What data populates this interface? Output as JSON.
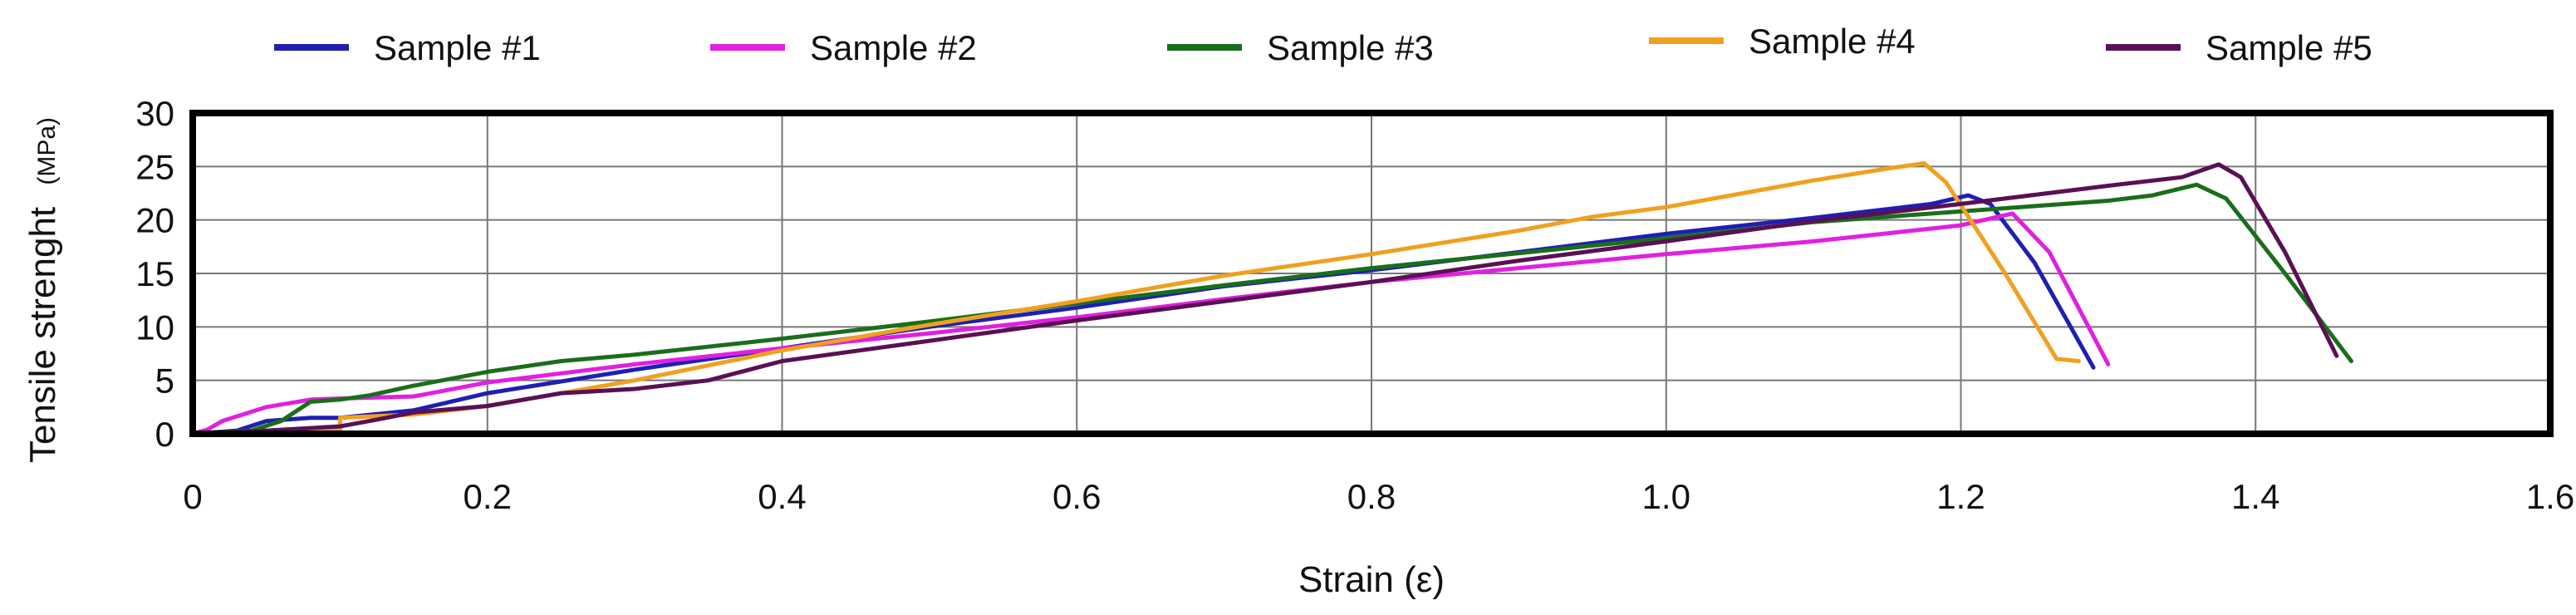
{
  "chart_data": {
    "type": "line",
    "title": "",
    "xlabel": "Strain (ε)",
    "ylabel": "Tensile strenght",
    "ylabel_unit": "(MPa)",
    "xlim": [
      0,
      1.6
    ],
    "ylim": [
      0,
      30
    ],
    "xticks": [
      0,
      0.2,
      0.4,
      0.6,
      0.8,
      1.0,
      1.2,
      1.4,
      1.6
    ],
    "xtick_labels": [
      "0",
      "0.2",
      "0.4",
      "0.6",
      "0.8",
      "1.0",
      "1.2",
      "1.4",
      "1.6"
    ],
    "yticks": [
      0,
      5,
      10,
      15,
      20,
      25,
      30
    ],
    "ytick_labels": [
      "0",
      "5",
      "10",
      "15",
      "20",
      "25",
      "30"
    ],
    "grid": true,
    "legend_position": "top",
    "series": [
      {
        "name": "Sample #1",
        "color": "#1f1fb4",
        "points": [
          [
            0,
            0
          ],
          [
            0.03,
            0.3
          ],
          [
            0.05,
            1.2
          ],
          [
            0.08,
            1.5
          ],
          [
            0.1,
            1.5
          ],
          [
            0.15,
            2.2
          ],
          [
            0.2,
            3.8
          ],
          [
            0.3,
            6.0
          ],
          [
            0.4,
            8.0
          ],
          [
            0.5,
            10.0
          ],
          [
            0.6,
            11.8
          ],
          [
            0.7,
            13.8
          ],
          [
            0.8,
            15.3
          ],
          [
            0.9,
            17.0
          ],
          [
            1.0,
            18.7
          ],
          [
            1.1,
            20.2
          ],
          [
            1.18,
            21.5
          ],
          [
            1.205,
            22.3
          ],
          [
            1.22,
            21.5
          ],
          [
            1.25,
            16.0
          ],
          [
            1.29,
            6.2
          ]
        ]
      },
      {
        "name": "Sample #2",
        "color": "#e020e0",
        "points": [
          [
            0,
            0
          ],
          [
            0.01,
            0.4
          ],
          [
            0.02,
            1.2
          ],
          [
            0.05,
            2.5
          ],
          [
            0.08,
            3.2
          ],
          [
            0.1,
            3.3
          ],
          [
            0.15,
            3.5
          ],
          [
            0.2,
            4.8
          ],
          [
            0.3,
            6.5
          ],
          [
            0.4,
            8.0
          ],
          [
            0.5,
            9.4
          ],
          [
            0.6,
            10.9
          ],
          [
            0.7,
            12.6
          ],
          [
            0.8,
            14.2
          ],
          [
            0.9,
            15.5
          ],
          [
            1.0,
            16.8
          ],
          [
            1.1,
            18.0
          ],
          [
            1.2,
            19.5
          ],
          [
            1.235,
            20.6
          ],
          [
            1.26,
            17.0
          ],
          [
            1.3,
            6.5
          ]
        ]
      },
      {
        "name": "Sample #3",
        "color": "#1a6e1a",
        "points": [
          [
            0,
            0
          ],
          [
            0.04,
            0.3
          ],
          [
            0.06,
            1.2
          ],
          [
            0.08,
            3.0
          ],
          [
            0.1,
            3.2
          ],
          [
            0.12,
            3.6
          ],
          [
            0.15,
            4.5
          ],
          [
            0.2,
            5.8
          ],
          [
            0.25,
            6.8
          ],
          [
            0.3,
            7.4
          ],
          [
            0.4,
            8.9
          ],
          [
            0.5,
            10.5
          ],
          [
            0.6,
            12.2
          ],
          [
            0.7,
            13.9
          ],
          [
            0.8,
            15.5
          ],
          [
            0.9,
            16.9
          ],
          [
            1.0,
            18.3
          ],
          [
            1.1,
            19.8
          ],
          [
            1.2,
            20.8
          ],
          [
            1.3,
            21.8
          ],
          [
            1.33,
            22.3
          ],
          [
            1.36,
            23.3
          ],
          [
            1.38,
            22.0
          ],
          [
            1.42,
            15.0
          ],
          [
            1.465,
            6.8
          ]
        ]
      },
      {
        "name": "Sample #4",
        "color": "#f0a020",
        "points": [
          [
            0,
            0
          ],
          [
            0.05,
            0.2
          ],
          [
            0.1,
            0.4
          ],
          [
            0.1,
            1.5
          ],
          [
            0.15,
            1.8
          ],
          [
            0.2,
            2.6
          ],
          [
            0.3,
            5.0
          ],
          [
            0.4,
            7.8
          ],
          [
            0.5,
            10.2
          ],
          [
            0.6,
            12.4
          ],
          [
            0.7,
            14.8
          ],
          [
            0.8,
            16.8
          ],
          [
            0.9,
            19.0
          ],
          [
            0.95,
            20.3
          ],
          [
            1.0,
            21.2
          ],
          [
            1.1,
            23.7
          ],
          [
            1.15,
            24.8
          ],
          [
            1.175,
            25.3
          ],
          [
            1.19,
            23.5
          ],
          [
            1.23,
            15.0
          ],
          [
            1.265,
            7.0
          ],
          [
            1.28,
            6.8
          ]
        ]
      },
      {
        "name": "Sample #5",
        "color": "#5a1055",
        "points": [
          [
            0,
            0
          ],
          [
            0.05,
            0.3
          ],
          [
            0.1,
            0.7
          ],
          [
            0.12,
            1.2
          ],
          [
            0.15,
            2.0
          ],
          [
            0.2,
            2.6
          ],
          [
            0.25,
            3.8
          ],
          [
            0.3,
            4.2
          ],
          [
            0.35,
            5.0
          ],
          [
            0.4,
            6.8
          ],
          [
            0.5,
            8.7
          ],
          [
            0.6,
            10.6
          ],
          [
            0.7,
            12.4
          ],
          [
            0.8,
            14.2
          ],
          [
            0.9,
            16.2
          ],
          [
            1.0,
            18.0
          ],
          [
            1.1,
            19.9
          ],
          [
            1.2,
            21.5
          ],
          [
            1.3,
            23.2
          ],
          [
            1.35,
            24.0
          ],
          [
            1.375,
            25.2
          ],
          [
            1.39,
            24.0
          ],
          [
            1.42,
            17.0
          ],
          [
            1.455,
            7.3
          ]
        ]
      }
    ]
  }
}
